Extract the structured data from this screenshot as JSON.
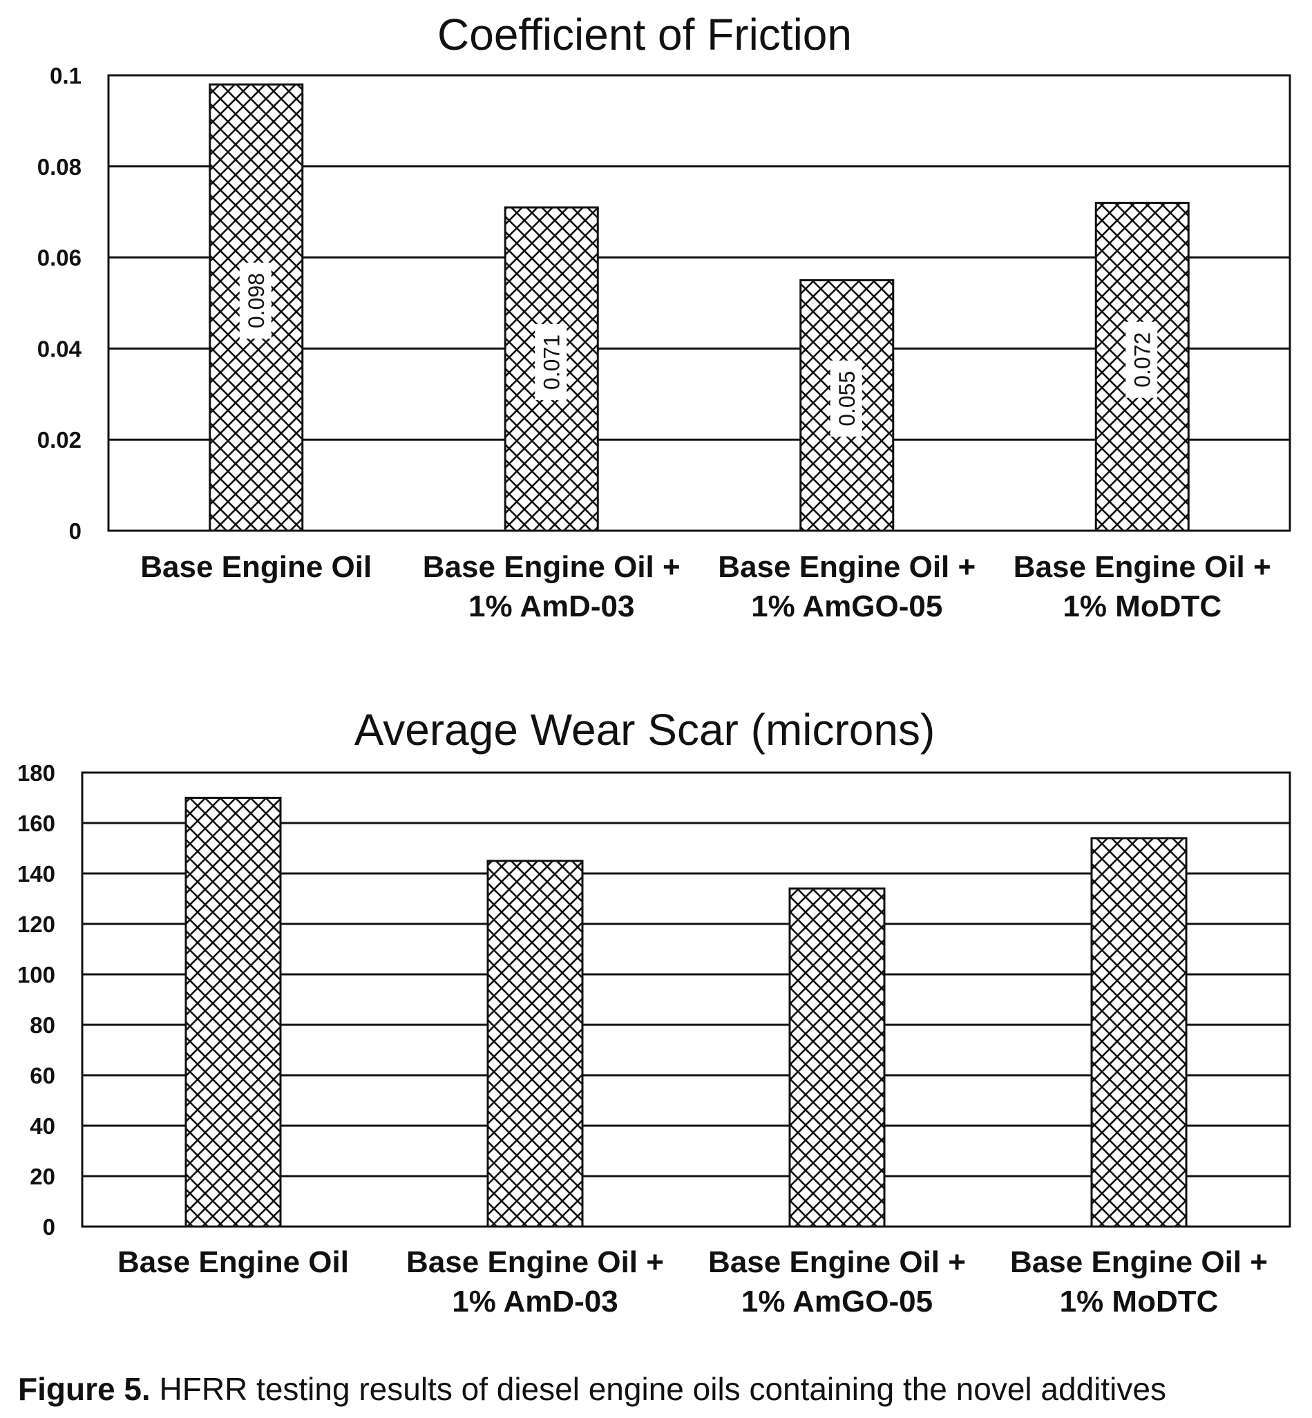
{
  "caption": {
    "label": "Figure 5.",
    "text": " HFRR testing results of diesel engine oils containing the novel additives"
  },
  "colors": {
    "ink": "#111111",
    "background": "#ffffff",
    "bar_pattern": "crosshatch"
  },
  "chart_data": [
    {
      "type": "bar",
      "title": "Coefficient of Friction",
      "categories": [
        [
          "Base Engine Oil"
        ],
        [
          "Base Engine Oil +",
          "1% AmD-03"
        ],
        [
          "Base Engine Oil +",
          "1% AmGO-05"
        ],
        [
          "Base Engine Oil +",
          "1% MoDTC"
        ]
      ],
      "values": [
        0.098,
        0.071,
        0.055,
        0.072
      ],
      "data_labels": [
        "0.098",
        "0.071",
        "0.055",
        "0.072"
      ],
      "ylim": [
        0,
        0.1
      ],
      "yticks": [
        "0",
        "0.02",
        "0.04",
        "0.06",
        "0.08",
        "0.1"
      ],
      "xlabel": "",
      "ylabel": "",
      "grid": true,
      "legend": "none"
    },
    {
      "type": "bar",
      "title": "Average Wear Scar (microns)",
      "categories": [
        [
          "Base Engine Oil"
        ],
        [
          "Base Engine Oil +",
          "1% AmD-03"
        ],
        [
          "Base Engine Oil +",
          "1% AmGO-05"
        ],
        [
          "Base Engine Oil +",
          "1% MoDTC"
        ]
      ],
      "values": [
        170,
        145,
        134,
        154
      ],
      "data_labels": [],
      "ylim": [
        0,
        180
      ],
      "yticks": [
        "0",
        "20",
        "40",
        "60",
        "80",
        "100",
        "120",
        "140",
        "160",
        "180"
      ],
      "xlabel": "",
      "ylabel": "",
      "grid": true,
      "legend": "none"
    }
  ]
}
